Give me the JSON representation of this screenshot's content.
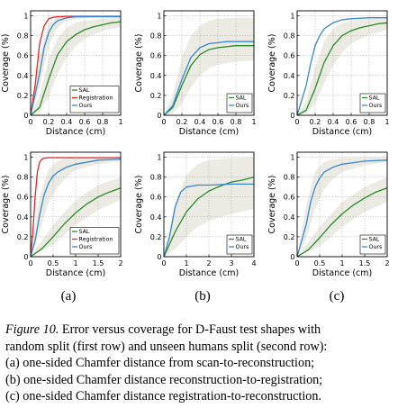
{
  "caption": {
    "label": "Figure 10.",
    "line1": "Error versus coverage for D-Faust test shapes with",
    "line2": "random split (first row) and unseen humans split (second row):",
    "line3": "(a) one-sided Chamfer distance from scan-to-reconstruction;",
    "line4": "(b) one-sided Chamfer distance reconstruction-to-registration;",
    "line5": "(c) one-sided Chamfer distance registration-to-reconstruction."
  },
  "panel_labels": [
    "(a)",
    "(b)",
    "(c)"
  ],
  "colors": {
    "SAL": "#2a8a2a",
    "Registration": "#ee2222",
    "Ours": "#3a86cf",
    "band": "#e4e4da"
  },
  "chart_data": [
    {
      "type": "line",
      "id": "row1-a",
      "xlabel": "Distance (cm)",
      "ylabel": "Coverage (%)",
      "xlim": [
        0,
        1
      ],
      "ylim": [
        0,
        1.05
      ],
      "xticks": [
        0,
        0.2,
        0.4,
        0.6,
        0.8,
        1
      ],
      "xtick_labels": [
        "0",
        "0.2",
        "0.4",
        "0.6",
        "0.8",
        "1"
      ],
      "yticks": [
        0,
        0.2,
        0.4,
        0.6,
        0.8,
        1
      ],
      "ytick_labels": [
        "0",
        "0.2",
        "0.4",
        "0.6",
        "0.8",
        "1"
      ],
      "grid": true,
      "legend": "bottom-right",
      "series": [
        {
          "name": "SAL",
          "x": [
            0,
            0.1,
            0.2,
            0.3,
            0.4,
            0.5,
            0.6,
            0.7,
            0.8,
            0.9,
            1
          ],
          "y": [
            0,
            0.08,
            0.36,
            0.61,
            0.74,
            0.81,
            0.86,
            0.89,
            0.91,
            0.93,
            0.94
          ]
        },
        {
          "name": "Registration",
          "x": [
            0,
            0.05,
            0.1,
            0.15,
            0.2,
            0.25,
            0.3,
            0.4,
            0.6,
            1
          ],
          "y": [
            0,
            0.3,
            0.72,
            0.9,
            0.97,
            0.985,
            0.99,
            0.995,
            0.995,
            0.995
          ]
        },
        {
          "name": "Ours",
          "x": [
            0,
            0.1,
            0.15,
            0.2,
            0.25,
            0.3,
            0.4,
            0.5,
            0.6,
            0.8,
            1
          ],
          "y": [
            0,
            0.42,
            0.68,
            0.83,
            0.91,
            0.95,
            0.98,
            0.99,
            0.99,
            0.99,
            0.99
          ]
        }
      ],
      "bands": [
        {
          "series": "SAL",
          "x": [
            0,
            0.1,
            0.2,
            0.3,
            0.4,
            0.5,
            0.6,
            0.8,
            1
          ],
          "lower": [
            0,
            0.03,
            0.18,
            0.42,
            0.58,
            0.69,
            0.77,
            0.85,
            0.89
          ],
          "upper": [
            0,
            0.2,
            0.56,
            0.78,
            0.88,
            0.93,
            0.95,
            0.97,
            0.98
          ]
        },
        {
          "series": "Ours",
          "x": [
            0,
            0.1,
            0.2,
            0.3,
            0.4,
            0.6,
            1
          ],
          "lower": [
            0,
            0.28,
            0.7,
            0.88,
            0.95,
            0.98,
            0.99
          ],
          "upper": [
            0,
            0.6,
            0.92,
            0.98,
            0.99,
            0.99,
            0.99
          ]
        }
      ]
    },
    {
      "type": "line",
      "id": "row1-b",
      "xlabel": "Distance (cm)",
      "ylabel": "Coverage (%)",
      "xlim": [
        0,
        1
      ],
      "ylim": [
        0,
        1.05
      ],
      "xticks": [
        0,
        0.2,
        0.4,
        0.6,
        0.8,
        1
      ],
      "xtick_labels": [
        "0",
        "0.2",
        "0.4",
        "0.6",
        "0.8",
        "1"
      ],
      "yticks": [
        0,
        0.2,
        0.4,
        0.6,
        0.8,
        1
      ],
      "ytick_labels": [
        "0",
        "0.2",
        "0.4",
        "0.6",
        "0.8",
        "1"
      ],
      "grid": true,
      "legend": "bottom-right",
      "series": [
        {
          "name": "SAL",
          "x": [
            0,
            0.1,
            0.2,
            0.3,
            0.4,
            0.5,
            0.6,
            0.7,
            0.8,
            1
          ],
          "y": [
            0,
            0.08,
            0.3,
            0.5,
            0.61,
            0.66,
            0.68,
            0.69,
            0.7,
            0.7
          ]
        },
        {
          "name": "Ours",
          "x": [
            0,
            0.1,
            0.2,
            0.3,
            0.4,
            0.5,
            0.6,
            0.7,
            0.8,
            1
          ],
          "y": [
            0,
            0.1,
            0.36,
            0.58,
            0.68,
            0.72,
            0.73,
            0.74,
            0.74,
            0.74
          ]
        }
      ],
      "bands": [
        {
          "series": "SAL",
          "x": [
            0,
            0.1,
            0.2,
            0.3,
            0.4,
            0.5,
            0.6,
            0.8,
            1
          ],
          "lower": [
            0,
            0.02,
            0.12,
            0.28,
            0.4,
            0.47,
            0.51,
            0.54,
            0.55
          ],
          "upper": [
            0,
            0.2,
            0.58,
            0.8,
            0.9,
            0.95,
            0.97,
            0.98,
            0.98
          ]
        }
      ]
    },
    {
      "type": "line",
      "id": "row1-c",
      "xlabel": "Distance (cm)",
      "ylabel": "Coverage (%)",
      "xlim": [
        0,
        1
      ],
      "ylim": [
        0,
        1.05
      ],
      "xticks": [
        0,
        0.2,
        0.4,
        0.6,
        0.8,
        1
      ],
      "xtick_labels": [
        "0",
        "0.2",
        "0.4",
        "0.6",
        "0.8",
        "1"
      ],
      "yticks": [
        0,
        0.2,
        0.4,
        0.6,
        0.8,
        1
      ],
      "ytick_labels": [
        "0",
        "0.2",
        "0.4",
        "0.6",
        "0.8",
        "1"
      ],
      "grid": true,
      "legend": "bottom-right",
      "series": [
        {
          "name": "SAL",
          "x": [
            0,
            0.1,
            0.2,
            0.3,
            0.4,
            0.5,
            0.6,
            0.7,
            0.8,
            0.9,
            1
          ],
          "y": [
            0,
            0.05,
            0.27,
            0.53,
            0.7,
            0.8,
            0.85,
            0.88,
            0.9,
            0.92,
            0.93
          ]
        },
        {
          "name": "Ours",
          "x": [
            0,
            0.1,
            0.15,
            0.2,
            0.25,
            0.3,
            0.4,
            0.5,
            0.6,
            0.8,
            1
          ],
          "y": [
            0,
            0.3,
            0.52,
            0.7,
            0.8,
            0.87,
            0.93,
            0.96,
            0.97,
            0.98,
            0.98
          ]
        }
      ],
      "bands": [
        {
          "series": "SAL",
          "x": [
            0,
            0.1,
            0.2,
            0.3,
            0.4,
            0.5,
            0.6,
            0.8,
            1
          ],
          "lower": [
            0,
            0.02,
            0.12,
            0.32,
            0.5,
            0.63,
            0.72,
            0.81,
            0.86
          ],
          "upper": [
            0,
            0.14,
            0.48,
            0.74,
            0.87,
            0.93,
            0.95,
            0.97,
            0.98
          ]
        }
      ]
    },
    {
      "type": "line",
      "id": "row2-a",
      "xlabel": "Distance (cm)",
      "ylabel": "Coverage (%)",
      "xlim": [
        0,
        2
      ],
      "ylim": [
        0,
        1.05
      ],
      "xticks": [
        0,
        0.5,
        1,
        1.5,
        2
      ],
      "xtick_labels": [
        "0",
        "0.5",
        "1",
        "1.5",
        "2"
      ],
      "yticks": [
        0,
        0.2,
        0.4,
        0.6,
        0.8,
        1
      ],
      "ytick_labels": [
        "0",
        "0.2",
        "0.4",
        "0.6",
        "0.8",
        "1"
      ],
      "grid": true,
      "legend": "bottom-right",
      "series": [
        {
          "name": "SAL",
          "x": [
            0,
            0.25,
            0.5,
            0.75,
            1,
            1.25,
            1.5,
            1.75,
            2
          ],
          "y": [
            0,
            0.08,
            0.2,
            0.33,
            0.44,
            0.53,
            0.6,
            0.65,
            0.69
          ]
        },
        {
          "name": "Registration",
          "x": [
            0,
            0.05,
            0.1,
            0.15,
            0.2,
            0.25,
            0.3,
            0.4,
            0.6,
            2
          ],
          "y": [
            0,
            0.25,
            0.6,
            0.85,
            0.95,
            0.98,
            0.99,
            0.995,
            0.995,
            0.995
          ]
        },
        {
          "name": "Ours",
          "x": [
            0,
            0.1,
            0.2,
            0.3,
            0.4,
            0.5,
            0.6,
            0.8,
            1,
            1.5,
            2
          ],
          "y": [
            0,
            0.16,
            0.42,
            0.62,
            0.74,
            0.81,
            0.85,
            0.9,
            0.93,
            0.97,
            0.98
          ]
        }
      ],
      "bands": [
        {
          "series": "Ours",
          "x": [
            0,
            0.2,
            0.4,
            0.6,
            0.8,
            1,
            1.5,
            2
          ],
          "lower": [
            0,
            0.25,
            0.55,
            0.7,
            0.8,
            0.87,
            0.93,
            0.96
          ],
          "upper": [
            0,
            0.6,
            0.88,
            0.96,
            0.99,
            1,
            1,
            1
          ]
        },
        {
          "series": "SAL",
          "x": [
            0,
            0.5,
            1,
            1.5,
            2
          ],
          "lower": [
            0,
            0.12,
            0.32,
            0.47,
            0.57
          ],
          "upper": [
            0,
            0.32,
            0.57,
            0.72,
            0.8
          ]
        }
      ]
    },
    {
      "type": "line",
      "id": "row2-b",
      "xlabel": "Distance (cm)",
      "ylabel": "Coverage (%)",
      "xlim": [
        0,
        4
      ],
      "ylim": [
        0,
        1.05
      ],
      "xticks": [
        0,
        1,
        2,
        3,
        4
      ],
      "xtick_labels": [
        "0",
        "1",
        "2",
        "3",
        "4"
      ],
      "yticks": [
        0,
        0.2,
        0.4,
        0.6,
        0.8,
        1
      ],
      "ytick_labels": [
        "0",
        "0.2",
        "0.4",
        "0.6",
        "0.8",
        "1"
      ],
      "grid": true,
      "legend": "bottom-right",
      "series": [
        {
          "name": "SAL",
          "x": [
            0,
            0.5,
            1,
            1.5,
            2,
            2.5,
            3,
            3.5,
            4
          ],
          "y": [
            0,
            0.25,
            0.45,
            0.58,
            0.66,
            0.71,
            0.75,
            0.77,
            0.8
          ]
        },
        {
          "name": "Ours",
          "x": [
            0,
            0.25,
            0.5,
            0.75,
            1,
            1.5,
            2,
            3,
            4
          ],
          "y": [
            0,
            0.2,
            0.5,
            0.65,
            0.7,
            0.72,
            0.72,
            0.73,
            0.73
          ]
        }
      ],
      "bands": [
        {
          "series": "SAL",
          "x": [
            0,
            0.5,
            1,
            1.5,
            2,
            3,
            4
          ],
          "lower": [
            0,
            0.08,
            0.2,
            0.3,
            0.36,
            0.43,
            0.48
          ],
          "upper": [
            0,
            0.55,
            0.82,
            0.93,
            0.97,
            0.99,
            1.0
          ]
        }
      ]
    },
    {
      "type": "line",
      "id": "row2-c",
      "xlabel": "Distance (cm)",
      "ylabel": "Coverage (%)",
      "xlim": [
        0,
        2
      ],
      "ylim": [
        0,
        1.05
      ],
      "xticks": [
        0,
        0.5,
        1,
        1.5,
        2
      ],
      "xtick_labels": [
        "0",
        "0.5",
        "1",
        "1.5",
        "2"
      ],
      "yticks": [
        0,
        0.2,
        0.4,
        0.6,
        0.8,
        1
      ],
      "ytick_labels": [
        "0",
        "0.2",
        "0.4",
        "0.6",
        "0.8",
        "1"
      ],
      "grid": true,
      "legend": "bottom-right",
      "series": [
        {
          "name": "SAL",
          "x": [
            0,
            0.25,
            0.5,
            0.75,
            1,
            1.25,
            1.5,
            1.75,
            2
          ],
          "y": [
            0,
            0.07,
            0.19,
            0.32,
            0.43,
            0.52,
            0.59,
            0.65,
            0.69
          ]
        },
        {
          "name": "Ours",
          "x": [
            0,
            0.2,
            0.3,
            0.4,
            0.5,
            0.6,
            0.8,
            1,
            1.5,
            2
          ],
          "y": [
            0,
            0.32,
            0.55,
            0.7,
            0.79,
            0.85,
            0.9,
            0.93,
            0.96,
            0.97
          ]
        }
      ],
      "bands": [
        {
          "series": "Ours",
          "x": [
            0,
            0.2,
            0.4,
            0.6,
            0.8,
            1,
            1.5,
            2
          ],
          "lower": [
            0,
            0.18,
            0.48,
            0.68,
            0.78,
            0.85,
            0.92,
            0.95
          ],
          "upper": [
            0,
            0.52,
            0.86,
            0.95,
            0.98,
            0.99,
            1,
            1
          ]
        },
        {
          "series": "SAL",
          "x": [
            0,
            0.5,
            1,
            1.5,
            2
          ],
          "lower": [
            0,
            0.1,
            0.3,
            0.45,
            0.55
          ],
          "upper": [
            0,
            0.3,
            0.55,
            0.7,
            0.8
          ]
        }
      ]
    }
  ]
}
